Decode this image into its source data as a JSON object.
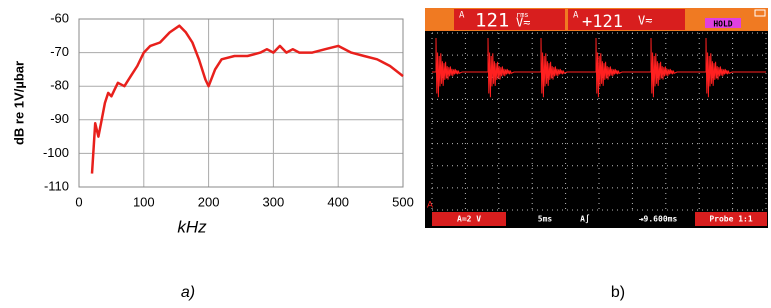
{
  "chart_data": {
    "type": "line",
    "y_label": "dB re 1V/µbar",
    "x_label": "kHz",
    "caption": "a)",
    "x": [
      20,
      25,
      30,
      35,
      40,
      45,
      50,
      55,
      60,
      70,
      80,
      90,
      100,
      110,
      125,
      140,
      155,
      165,
      175,
      185,
      195,
      200,
      210,
      220,
      240,
      260,
      280,
      290,
      300,
      310,
      320,
      330,
      340,
      360,
      380,
      400,
      420,
      440,
      460,
      480,
      500
    ],
    "values": [
      -106,
      -91,
      -95,
      -90,
      -85,
      -82,
      -83,
      -81,
      -79,
      -80,
      -77,
      -74,
      -70,
      -68,
      -67,
      -64,
      -62,
      -64,
      -67,
      -72,
      -78,
      -80,
      -75,
      -72,
      -71,
      -71,
      -70,
      -69,
      -70,
      -68,
      -70,
      -69,
      -70,
      -70,
      -69,
      -68,
      -70,
      -71,
      -72,
      -74,
      -77
    ],
    "color": "#e8201c",
    "xlim": [
      0,
      500
    ],
    "xticks": [
      0,
      100,
      200,
      300,
      400,
      500
    ],
    "ylim": [
      -110,
      -60
    ],
    "yticks": [
      -60,
      -70,
      -80,
      -90,
      -100,
      -110
    ],
    "grid": true
  },
  "scope": {
    "caption": "b)",
    "readings": [
      {
        "channel": "A",
        "value": "121",
        "mode": "rms",
        "unit": "V≂"
      },
      {
        "channel": "A",
        "value": "+121",
        "unit": "V≂"
      }
    ],
    "hold": "HOLD",
    "footer": [
      "A≕2 V",
      "5ms",
      "A∫",
      "⇥9.600ms",
      "Probe 1:1"
    ]
  }
}
